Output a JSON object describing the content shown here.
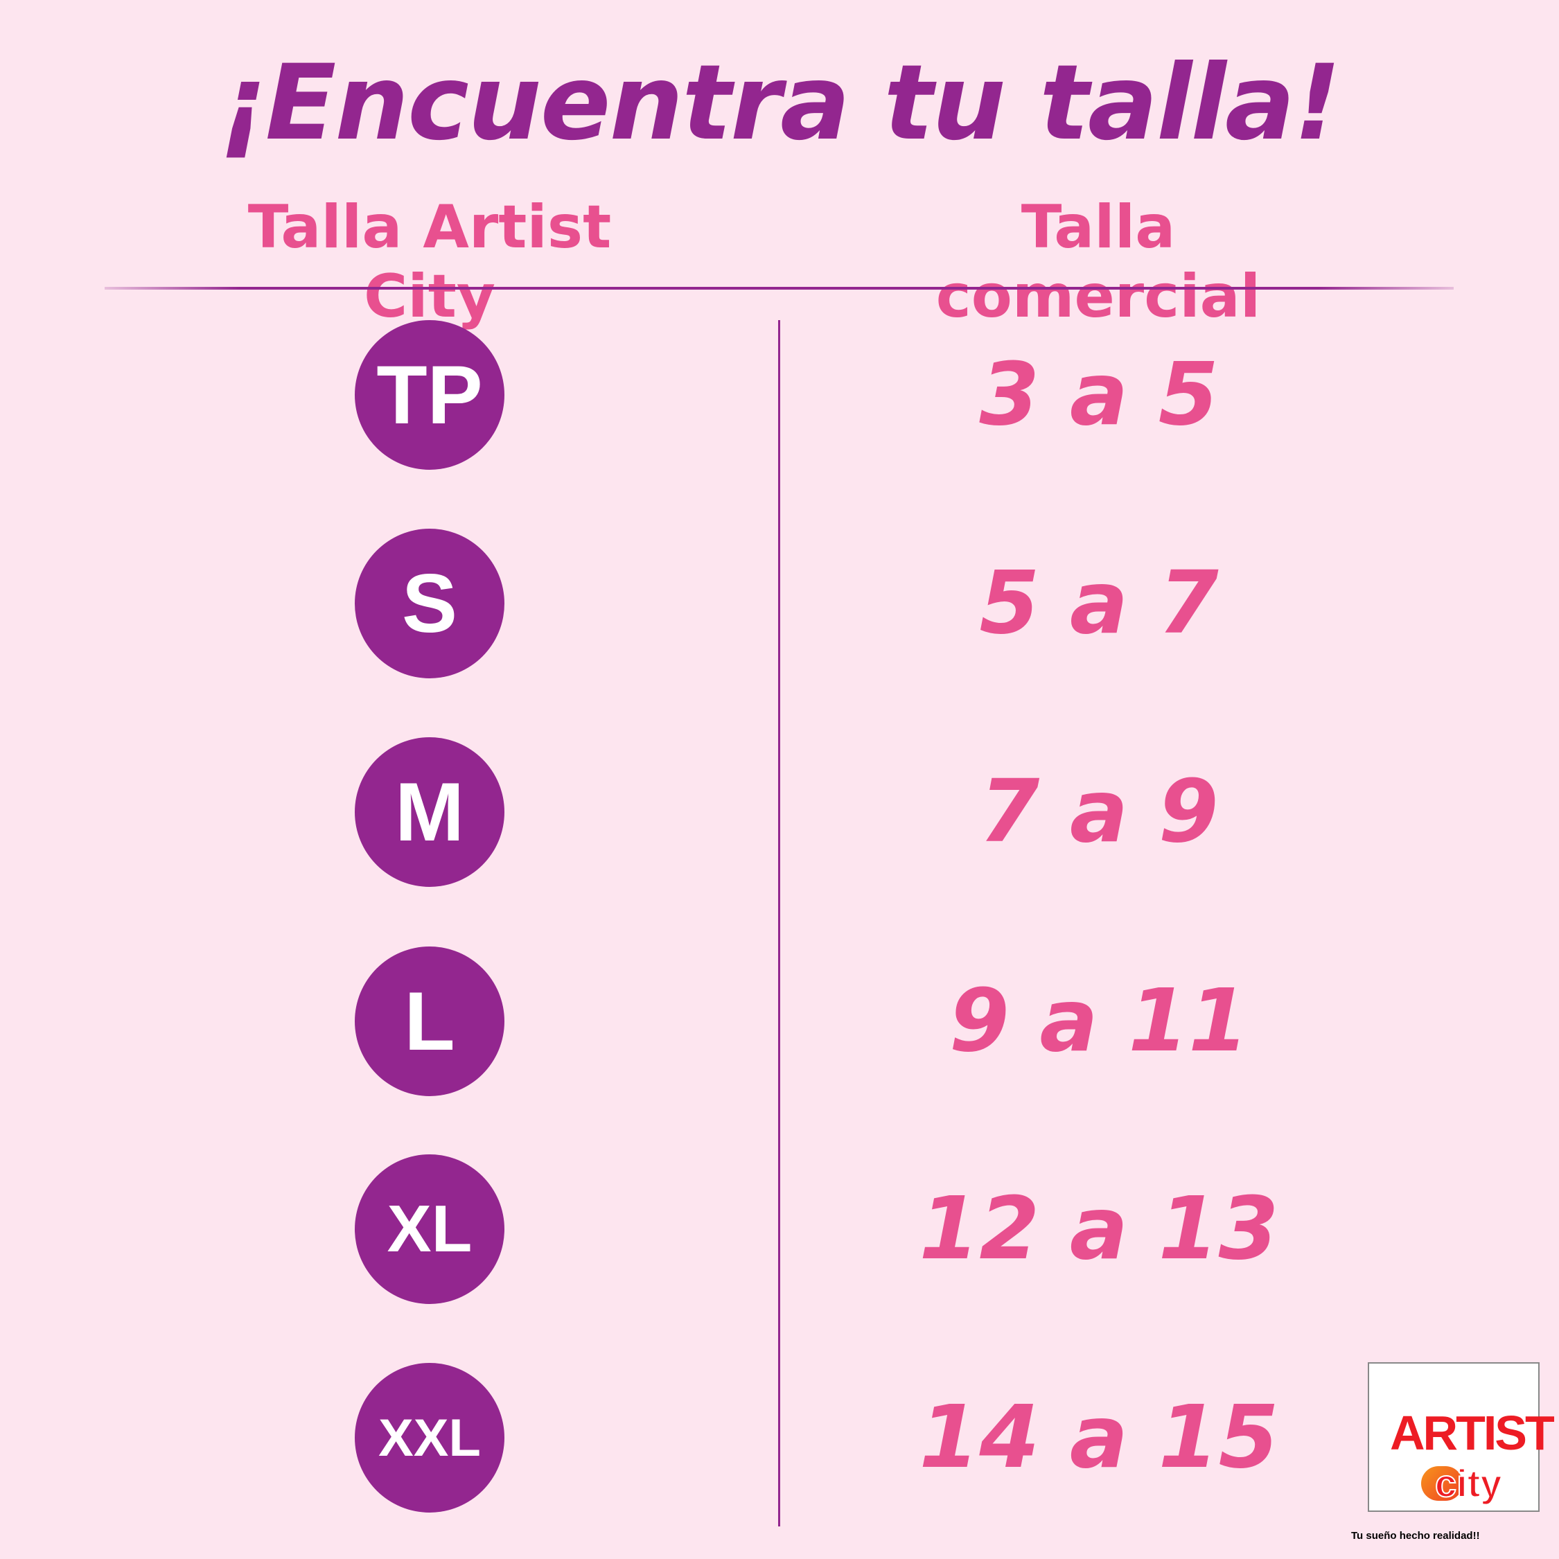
{
  "title": "¡Encuentra tu talla!",
  "headers": {
    "artist_city": "Talla Artist City",
    "comercial": "Talla comercial"
  },
  "rows": [
    {
      "size": "TP",
      "range": "3 a 5"
    },
    {
      "size": "S",
      "range": "5 a 7"
    },
    {
      "size": "M",
      "range": "7 a 9"
    },
    {
      "size": "L",
      "range": "9 a 11"
    },
    {
      "size": "XL",
      "range": "12 a 13"
    },
    {
      "size": "XXL",
      "range": "14 a 15"
    }
  ],
  "logo": {
    "text": "ARTIST city",
    "tagline": "Tu sueño hecho realidad!!"
  },
  "colors": {
    "background": "#fde5ef",
    "primary": "#93268f",
    "accent": "#e8508f"
  }
}
